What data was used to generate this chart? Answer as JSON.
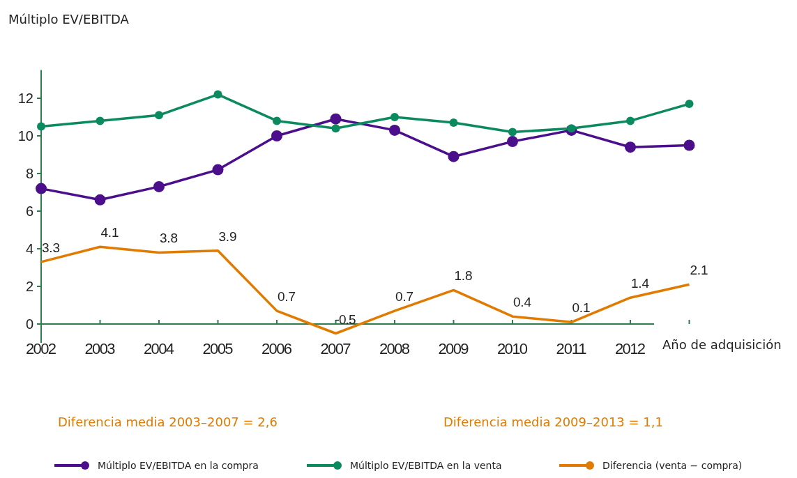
{
  "chart_data": {
    "type": "line",
    "ylabel": "Múltiplo EV/EBITDA",
    "xlabel": "Año de adquisición",
    "categories": [
      "2002",
      "2003",
      "2004",
      "2005",
      "2006",
      "2007",
      "2008",
      "2009",
      "2010",
      "2011",
      "2012",
      null
    ],
    "ylim": [
      -1,
      13.5
    ],
    "yticks": [
      0,
      2,
      4,
      6,
      8,
      10,
      12
    ],
    "grid": false,
    "legend": "bottom",
    "marker": "circle",
    "line_style": "solid",
    "series": [
      {
        "name": "Múltiplo EV/EBITDA en la compra",
        "color": "#4b0f8c",
        "values": [
          7.2,
          6.6,
          7.3,
          8.2,
          10.0,
          10.9,
          10.3,
          8.9,
          9.7,
          10.3,
          9.4,
          9.5
        ]
      },
      {
        "name": "Múltiplo EV/EBITDA en la venta",
        "color": "#0a8a5e",
        "values": [
          10.5,
          10.8,
          11.1,
          12.2,
          10.8,
          10.4,
          11.0,
          10.7,
          10.2,
          10.4,
          10.8,
          11.7
        ]
      },
      {
        "name": "Diferencia (venta − compra)",
        "color": "#e07b00",
        "marker": "none",
        "data_labels": true,
        "values": [
          3.3,
          4.1,
          3.8,
          3.9,
          0.7,
          -0.5,
          0.7,
          1.8,
          0.4,
          0.1,
          1.4,
          2.1
        ]
      }
    ],
    "annotations": [
      "Diferencia media 2003–2007 = 2,6",
      "Diferencia media 2009–2013 = 1,1"
    ]
  }
}
